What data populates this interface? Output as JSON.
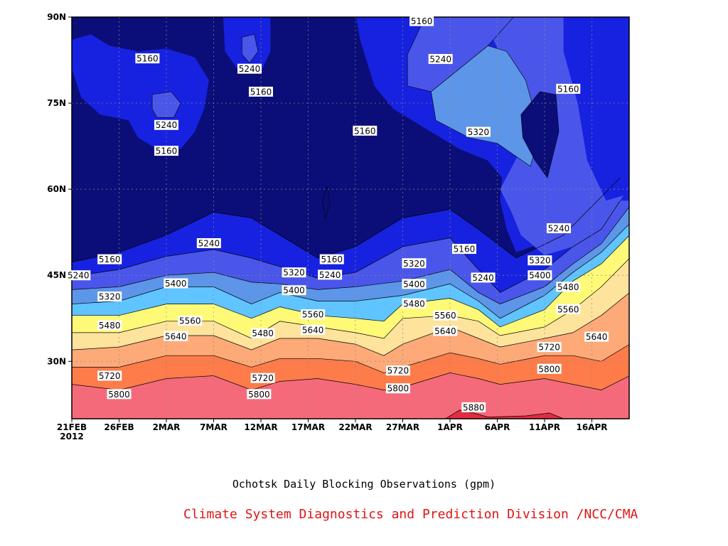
{
  "caption": "Ochotsk Daily Blocking Observations (gpm)",
  "credit": "Climate System Diagnostics and Prediction Division /NCC/CMA",
  "chart_data": {
    "type": "contour",
    "title": "",
    "variable_units": "gpm",
    "x_ticks": [
      "21FEB",
      "26FEB",
      "2MAR",
      "7MAR",
      "12MAR",
      "17MAR",
      "22MAR",
      "27MAR",
      "1APR",
      "6APR",
      "11APR",
      "16APR"
    ],
    "x_year_label": "2012",
    "x_day_range": [
      0,
      59
    ],
    "y_ticks": [
      "30N",
      "45N",
      "60N",
      "75N",
      "90N"
    ],
    "y_tick_values": [
      30,
      45,
      60,
      75,
      90
    ],
    "y_range": [
      20,
      90
    ],
    "contour_levels": [
      5160,
      5240,
      5320,
      5400,
      5480,
      5560,
      5640,
      5720,
      5800,
      5880
    ],
    "fill_colors": [
      "#0b0e78",
      "#1722e0",
      "#4a56ea",
      "#5d95e8",
      "#5fc4ff",
      "#fefa78",
      "#fee39c",
      "#fdaa78",
      "#fd7c4a",
      "#f56a7a",
      "#e32c40"
    ],
    "contour_lines": [
      {
        "level": 5160,
        "points": [
          [
            0,
            47.3
          ],
          [
            5,
            49
          ],
          [
            10,
            52
          ],
          [
            15,
            56
          ],
          [
            19,
            55
          ],
          [
            22,
            52
          ],
          [
            26,
            48
          ],
          [
            30,
            50
          ],
          [
            35,
            55
          ],
          [
            40,
            56.5
          ],
          [
            43,
            53
          ],
          [
            47,
            48
          ],
          [
            52,
            52
          ],
          [
            55,
            57
          ],
          [
            58,
            62
          ]
        ]
      },
      {
        "level": 5240,
        "points": [
          [
            0,
            44.8
          ],
          [
            5,
            46
          ],
          [
            10,
            48.3
          ],
          [
            15,
            49.5
          ],
          [
            19,
            48
          ],
          [
            22,
            46.5
          ],
          [
            26,
            44.5
          ],
          [
            30,
            45.5
          ],
          [
            35,
            50
          ],
          [
            40,
            51.5
          ],
          [
            43,
            46
          ],
          [
            45.3,
            42
          ],
          [
            50,
            46
          ],
          [
            53,
            50
          ],
          [
            56,
            53
          ],
          [
            58,
            58
          ]
        ]
      },
      {
        "level": 5320,
        "points": [
          [
            0,
            42.5
          ],
          [
            5,
            43
          ],
          [
            10,
            45
          ],
          [
            15,
            45.5
          ],
          [
            19,
            43.8
          ],
          [
            22,
            43.5
          ],
          [
            26,
            42.5
          ],
          [
            30,
            43
          ],
          [
            35,
            44
          ],
          [
            40,
            46
          ],
          [
            43,
            42
          ],
          [
            45.3,
            40
          ],
          [
            50,
            43
          ],
          [
            53,
            47
          ],
          [
            56,
            50.5
          ],
          [
            59,
            57
          ]
        ]
      },
      {
        "level": 5400,
        "points": [
          [
            0,
            40
          ],
          [
            5,
            40.5
          ],
          [
            10,
            43
          ],
          [
            15,
            43
          ],
          [
            19,
            40
          ],
          [
            22,
            42
          ],
          [
            26,
            40.5
          ],
          [
            30,
            40.5
          ],
          [
            35,
            41.5
          ],
          [
            40,
            43.5
          ],
          [
            43,
            40.5
          ],
          [
            45.3,
            37.5
          ],
          [
            50,
            41.5
          ],
          [
            53,
            45.5
          ],
          [
            56,
            49
          ],
          [
            59,
            54
          ]
        ]
      },
      {
        "level": 5480,
        "points": [
          [
            0,
            38
          ],
          [
            5,
            38
          ],
          [
            10,
            40
          ],
          [
            15,
            40
          ],
          [
            19,
            37.5
          ],
          [
            22,
            39.5
          ],
          [
            26,
            38
          ],
          [
            30,
            37.5
          ],
          [
            33,
            37
          ],
          [
            35,
            40
          ],
          [
            40,
            41
          ],
          [
            43,
            39
          ],
          [
            45.3,
            36
          ],
          [
            50,
            39
          ],
          [
            53,
            44
          ],
          [
            56,
            47
          ],
          [
            59,
            52
          ]
        ]
      },
      {
        "level": 5560,
        "points": [
          [
            0,
            35
          ],
          [
            5,
            35
          ],
          [
            10,
            37
          ],
          [
            15,
            37
          ],
          [
            19,
            34
          ],
          [
            22,
            37
          ],
          [
            26,
            36
          ],
          [
            30,
            35
          ],
          [
            33,
            34
          ],
          [
            35,
            37.5
          ],
          [
            40,
            38
          ],
          [
            43,
            37
          ],
          [
            45.3,
            34.5
          ],
          [
            50,
            36
          ],
          [
            53,
            39
          ],
          [
            56,
            43
          ],
          [
            59,
            48
          ]
        ]
      },
      {
        "level": 5640,
        "points": [
          [
            0,
            32
          ],
          [
            5,
            32.5
          ],
          [
            10,
            34.5
          ],
          [
            15,
            34.5
          ],
          [
            19,
            32
          ],
          [
            22,
            34
          ],
          [
            26,
            34
          ],
          [
            30,
            33
          ],
          [
            33,
            31
          ],
          [
            35,
            33
          ],
          [
            40,
            36
          ],
          [
            43,
            34
          ],
          [
            45.3,
            32.5
          ],
          [
            50,
            34
          ],
          [
            53,
            35
          ],
          [
            56,
            38
          ],
          [
            59,
            42
          ]
        ]
      },
      {
        "level": 5720,
        "points": [
          [
            0,
            29
          ],
          [
            5,
            29
          ],
          [
            10,
            31
          ],
          [
            15,
            31
          ],
          [
            19,
            29
          ],
          [
            22,
            30.5
          ],
          [
            26,
            30.5
          ],
          [
            30,
            30
          ],
          [
            33,
            28
          ],
          [
            35,
            29
          ],
          [
            40,
            31.5
          ],
          [
            43,
            30.5
          ],
          [
            45.3,
            29.5
          ],
          [
            50,
            31
          ],
          [
            53,
            31
          ],
          [
            56,
            30
          ],
          [
            59,
            33
          ]
        ]
      },
      {
        "level": 5800,
        "points": [
          [
            0,
            26
          ],
          [
            5,
            25
          ],
          [
            10,
            27
          ],
          [
            15,
            27.5
          ],
          [
            19,
            25
          ],
          [
            22,
            26.5
          ],
          [
            26,
            27
          ],
          [
            30,
            26
          ],
          [
            33,
            25
          ],
          [
            35,
            25.5
          ],
          [
            40,
            28
          ],
          [
            43,
            27
          ],
          [
            45.3,
            26
          ],
          [
            50,
            27
          ],
          [
            53,
            26
          ],
          [
            56,
            25
          ],
          [
            59,
            27.5
          ]
        ]
      },
      {
        "level": 5880,
        "points": [
          [
            39.5,
            20
          ],
          [
            41,
            21.5
          ],
          [
            42.5,
            21
          ],
          [
            44,
            20.3
          ],
          [
            48,
            20.5
          ],
          [
            50.5,
            21
          ],
          [
            52,
            20
          ]
        ]
      }
    ],
    "closed_features": [
      {
        "level": 5240,
        "center": [
          10,
          74.5
        ],
        "kind": "high_inside_low"
      },
      {
        "level": 5240,
        "center": [
          18.8,
          83.5
        ],
        "kind": "high_inside_low"
      },
      {
        "level": 5320,
        "center": [
          45,
          79
        ],
        "kind": "high_inside_low"
      },
      {
        "level": 5160,
        "center": [
          50,
          71
        ],
        "kind": "low_inside_high"
      }
    ],
    "labels": [
      {
        "text": "5160",
        "x": 8,
        "y": 82.8
      },
      {
        "text": "5240",
        "x": 10,
        "y": 71.2
      },
      {
        "text": "5160",
        "x": 10,
        "y": 66.7
      },
      {
        "text": "5240",
        "x": 18.8,
        "y": 81
      },
      {
        "text": "5160",
        "x": 20,
        "y": 77
      },
      {
        "text": "5160",
        "x": 31,
        "y": 70.2
      },
      {
        "text": "5160",
        "x": 37,
        "y": 89.3
      },
      {
        "text": "5240",
        "x": 39,
        "y": 82.7
      },
      {
        "text": "5320",
        "x": 43,
        "y": 70
      },
      {
        "text": "5160",
        "x": 52.5,
        "y": 77.5
      },
      {
        "text": "5240",
        "x": 0.7,
        "y": 45
      },
      {
        "text": "5160",
        "x": 4,
        "y": 47.8
      },
      {
        "text": "5320",
        "x": 4,
        "y": 41.3
      },
      {
        "text": "5480",
        "x": 4,
        "y": 36.3
      },
      {
        "text": "5720",
        "x": 4,
        "y": 27.5
      },
      {
        "text": "5800",
        "x": 5,
        "y": 24.3
      },
      {
        "text": "5400",
        "x": 11,
        "y": 43.6
      },
      {
        "text": "5560",
        "x": 12.5,
        "y": 37.1
      },
      {
        "text": "5640",
        "x": 11,
        "y": 34.4
      },
      {
        "text": "5240",
        "x": 14.5,
        "y": 50.6
      },
      {
        "text": "5320",
        "x": 23.5,
        "y": 45.5
      },
      {
        "text": "5400",
        "x": 23.5,
        "y": 42.4
      },
      {
        "text": "5480",
        "x": 20.2,
        "y": 34.9
      },
      {
        "text": "5720",
        "x": 20.2,
        "y": 27.1
      },
      {
        "text": "5800",
        "x": 19.8,
        "y": 24.3
      },
      {
        "text": "5160",
        "x": 27.5,
        "y": 47.8
      },
      {
        "text": "5240",
        "x": 27.3,
        "y": 45.1
      },
      {
        "text": "5560",
        "x": 25.5,
        "y": 38.2
      },
      {
        "text": "5640",
        "x": 25.5,
        "y": 35.5
      },
      {
        "text": "5320",
        "x": 36.2,
        "y": 47.1
      },
      {
        "text": "5400",
        "x": 36.2,
        "y": 43.5
      },
      {
        "text": "5480",
        "x": 36.2,
        "y": 40.1
      },
      {
        "text": "5720",
        "x": 34.5,
        "y": 28.4
      },
      {
        "text": "5800",
        "x": 34.5,
        "y": 25.3
      },
      {
        "text": "5160",
        "x": 41.5,
        "y": 49.6
      },
      {
        "text": "5560",
        "x": 39.5,
        "y": 38
      },
      {
        "text": "5640",
        "x": 39.5,
        "y": 35.3
      },
      {
        "text": "5240",
        "x": 43.5,
        "y": 44.6
      },
      {
        "text": "5880",
        "x": 42.5,
        "y": 22
      },
      {
        "text": "5320",
        "x": 49.5,
        "y": 47.6
      },
      {
        "text": "5400",
        "x": 49.5,
        "y": 45
      },
      {
        "text": "5240",
        "x": 51.5,
        "y": 53.2
      },
      {
        "text": "5480",
        "x": 52.5,
        "y": 43
      },
      {
        "text": "5560",
        "x": 52.5,
        "y": 39.1
      },
      {
        "text": "5720",
        "x": 50.5,
        "y": 32.5
      },
      {
        "text": "5800",
        "x": 50.5,
        "y": 28.7
      },
      {
        "text": "5640",
        "x": 55.5,
        "y": 34.3
      }
    ]
  }
}
